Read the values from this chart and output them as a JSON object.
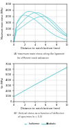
{
  "top_chart": {
    "ylabel": "Maximum main stress (MPa)",
    "xlabel": "Distance to notch bottom (mm)",
    "ylim": [
      0,
      3000
    ],
    "xlim": [
      0,
      10
    ],
    "yticks": [
      0,
      500,
      1000,
      1500,
      2000,
      2500,
      3000
    ],
    "xticks": [
      0,
      2,
      4,
      6,
      8,
      10
    ],
    "caption_a": "(A) maximum main stress along the ligament",
    "caption_b": "     for different crack advances",
    "color": "#5bc8d4"
  },
  "bottom_chart": {
    "ylabel": "Ve (MPa)",
    "xlabel": "Distance to notch bottom (mm)",
    "ylim": [
      0,
      7000
    ],
    "xlim": [
      0,
      10
    ],
    "yticks": [
      0,
      1000,
      2000,
      3000,
      4000,
      5000,
      6000,
      7000
    ],
    "xticks": [
      0,
      2,
      4,
      6,
      8,
      10
    ],
    "caption_a": "(B)  Vertical stress as a function of deflection",
    "caption_b": "      of specimen (n = 5.5)",
    "color": "#5bc8d4"
  },
  "legend": {
    "isotherme_label": "Isotherme",
    "adiabatic_label": "Adiabatic",
    "color": "#5bc8d4"
  },
  "background_color": "#ffffff",
  "grid_color": "#d0d0d0",
  "top_curves": [
    {
      "peak_x": 1.8,
      "peak_y": 2100,
      "sigma_l": 1.5,
      "sigma_r": 3.5
    },
    {
      "peak_x": 2.8,
      "peak_y": 2400,
      "sigma_l": 2.2,
      "sigma_r": 3.8
    },
    {
      "peak_x": 4.2,
      "peak_y": 2300,
      "sigma_l": 3.0,
      "sigma_r": 3.2
    },
    {
      "peak_x": 5.5,
      "peak_y": 2000,
      "sigma_l": 3.8,
      "sigma_r": 2.8
    }
  ]
}
